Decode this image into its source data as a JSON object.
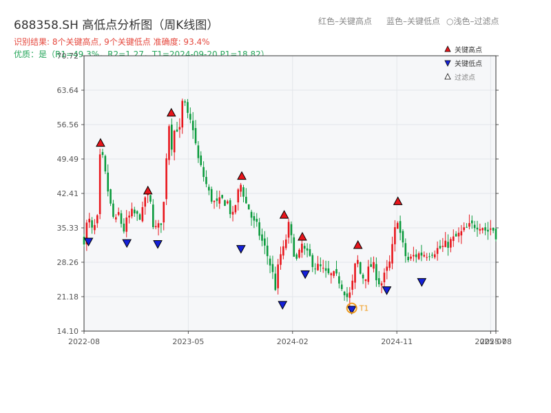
{
  "header": {
    "title": "688358.SH 高低点分析图（周K线图）",
    "legend_red": "红色–关键高点",
    "legend_blue": "蓝色–关键低点",
    "legend_hollow": "○浅色–过滤点",
    "result_line": "识别结果: 8个关键高点, 9个关键低点   准确度: 93.4%",
    "quality_line": "优质：是（R1=49.3%，R2=1.27，T1=2024-09-20 P1=18.82）"
  },
  "chart_data": {
    "type": "candlestick",
    "yticks": [
      14.1,
      21.18,
      28.26,
      35.33,
      42.41,
      49.49,
      56.56,
      63.64,
      70.72
    ],
    "ylim": [
      14.1,
      70.72
    ],
    "xticks": [
      {
        "label": "2022-08",
        "t": 0
      },
      {
        "label": "2023-05",
        "t": 0.2532
      },
      {
        "label": "2024-02",
        "t": 0.5063
      },
      {
        "label": "2024-11",
        "t": 0.7595
      },
      {
        "label": "2025-07",
        "t": 0.9873
      },
      {
        "label": "2025-08",
        "t": 1.0
      }
    ],
    "legend": [
      {
        "label": "关键高点",
        "color": "#e8151b",
        "marker": "triangle-up"
      },
      {
        "label": "关键低点",
        "color": "#1420d8",
        "marker": "triangle-down"
      },
      {
        "label": "过滤点",
        "color": "#ffffff",
        "marker": "triangle-up-hollow"
      }
    ],
    "colors": {
      "up": "#e8151b",
      "down": "#0a9a3c",
      "high_marker": "#e8151b",
      "low_marker": "#1420d8",
      "t1": "#f09a1a"
    },
    "close_path": [
      [
        0.0,
        33.0
      ],
      [
        0.01,
        37.5
      ],
      [
        0.02,
        34.5
      ],
      [
        0.032,
        36.5
      ],
      [
        0.04,
        52.0
      ],
      [
        0.052,
        46.0
      ],
      [
        0.064,
        40.0
      ],
      [
        0.075,
        36.0
      ],
      [
        0.085,
        38.5
      ],
      [
        0.095,
        34.5
      ],
      [
        0.105,
        37.0
      ],
      [
        0.118,
        38.5
      ],
      [
        0.13,
        37.5
      ],
      [
        0.142,
        38.5
      ],
      [
        0.15,
        42.5
      ],
      [
        0.162,
        40.0
      ],
      [
        0.17,
        35.0
      ],
      [
        0.182,
        35.5
      ],
      [
        0.192,
        38.0
      ],
      [
        0.205,
        58.0
      ],
      [
        0.212,
        52.0
      ],
      [
        0.222,
        56.5
      ],
      [
        0.232,
        55.0
      ],
      [
        0.24,
        62.0
      ],
      [
        0.252,
        58.0
      ],
      [
        0.265,
        56.0
      ],
      [
        0.275,
        50.0
      ],
      [
        0.29,
        46.0
      ],
      [
        0.305,
        42.0
      ],
      [
        0.32,
        40.0
      ],
      [
        0.335,
        41.0
      ],
      [
        0.35,
        40.5
      ],
      [
        0.36,
        37.0
      ],
      [
        0.372,
        42.0
      ],
      [
        0.382,
        44.5
      ],
      [
        0.392,
        40.5
      ],
      [
        0.402,
        39.0
      ],
      [
        0.41,
        36.5
      ],
      [
        0.42,
        35.5
      ],
      [
        0.43,
        33.0
      ],
      [
        0.442,
        30.5
      ],
      [
        0.455,
        27.0
      ],
      [
        0.465,
        23.0
      ],
      [
        0.475,
        29.5
      ],
      [
        0.486,
        31.0
      ],
      [
        0.496,
        36.0
      ],
      [
        0.508,
        31.0
      ],
      [
        0.518,
        28.0
      ],
      [
        0.528,
        32.0
      ],
      [
        0.538,
        30.0
      ],
      [
        0.55,
        29.0
      ],
      [
        0.56,
        27.5
      ],
      [
        0.575,
        27.0
      ],
      [
        0.59,
        25.5
      ],
      [
        0.605,
        25.5
      ],
      [
        0.62,
        24.5
      ],
      [
        0.632,
        22.5
      ],
      [
        0.642,
        20.5
      ],
      [
        0.652,
        24.0
      ],
      [
        0.662,
        29.5
      ],
      [
        0.67,
        26.0
      ],
      [
        0.68,
        25.0
      ],
      [
        0.69,
        26.5
      ],
      [
        0.7,
        28.0
      ],
      [
        0.71,
        25.5
      ],
      [
        0.72,
        23.5
      ],
      [
        0.73,
        25.5
      ],
      [
        0.742,
        28.0
      ],
      [
        0.752,
        33.0
      ],
      [
        0.76,
        38.0
      ],
      [
        0.768,
        34.0
      ],
      [
        0.778,
        30.0
      ],
      [
        0.788,
        28.5
      ],
      [
        0.8,
        29.5
      ],
      [
        0.815,
        30.0
      ],
      [
        0.83,
        30.0
      ],
      [
        0.845,
        30.5
      ],
      [
        0.86,
        31.0
      ],
      [
        0.875,
        31.5
      ],
      [
        0.89,
        32.5
      ],
      [
        0.905,
        33.5
      ],
      [
        0.92,
        34.5
      ],
      [
        0.935,
        35.5
      ],
      [
        0.95,
        36.0
      ],
      [
        0.965,
        36.0
      ],
      [
        0.978,
        34.5
      ],
      [
        0.99,
        35.5
      ],
      [
        1.0,
        34.0
      ]
    ],
    "key_highs": [
      {
        "t": 0.04,
        "price": 52.8
      },
      {
        "t": 0.155,
        "price": 43.0
      },
      {
        "t": 0.212,
        "price": 59.0
      },
      {
        "t": 0.383,
        "price": 46.0
      },
      {
        "t": 0.486,
        "price": 38.0
      },
      {
        "t": 0.53,
        "price": 33.5
      },
      {
        "t": 0.665,
        "price": 31.8
      },
      {
        "t": 0.762,
        "price": 40.8
      }
    ],
    "key_lows": [
      {
        "t": 0.011,
        "price": 32.5
      },
      {
        "t": 0.104,
        "price": 32.2
      },
      {
        "t": 0.179,
        "price": 32.0
      },
      {
        "t": 0.381,
        "price": 31.0
      },
      {
        "t": 0.482,
        "price": 19.5
      },
      {
        "t": 0.537,
        "price": 25.8
      },
      {
        "t": 0.65,
        "price": 18.5
      },
      {
        "t": 0.735,
        "price": 22.5
      },
      {
        "t": 0.82,
        "price": 24.2
      }
    ],
    "t1_label": "T1",
    "t1_t": 0.65,
    "t1_price": 18.82
  }
}
